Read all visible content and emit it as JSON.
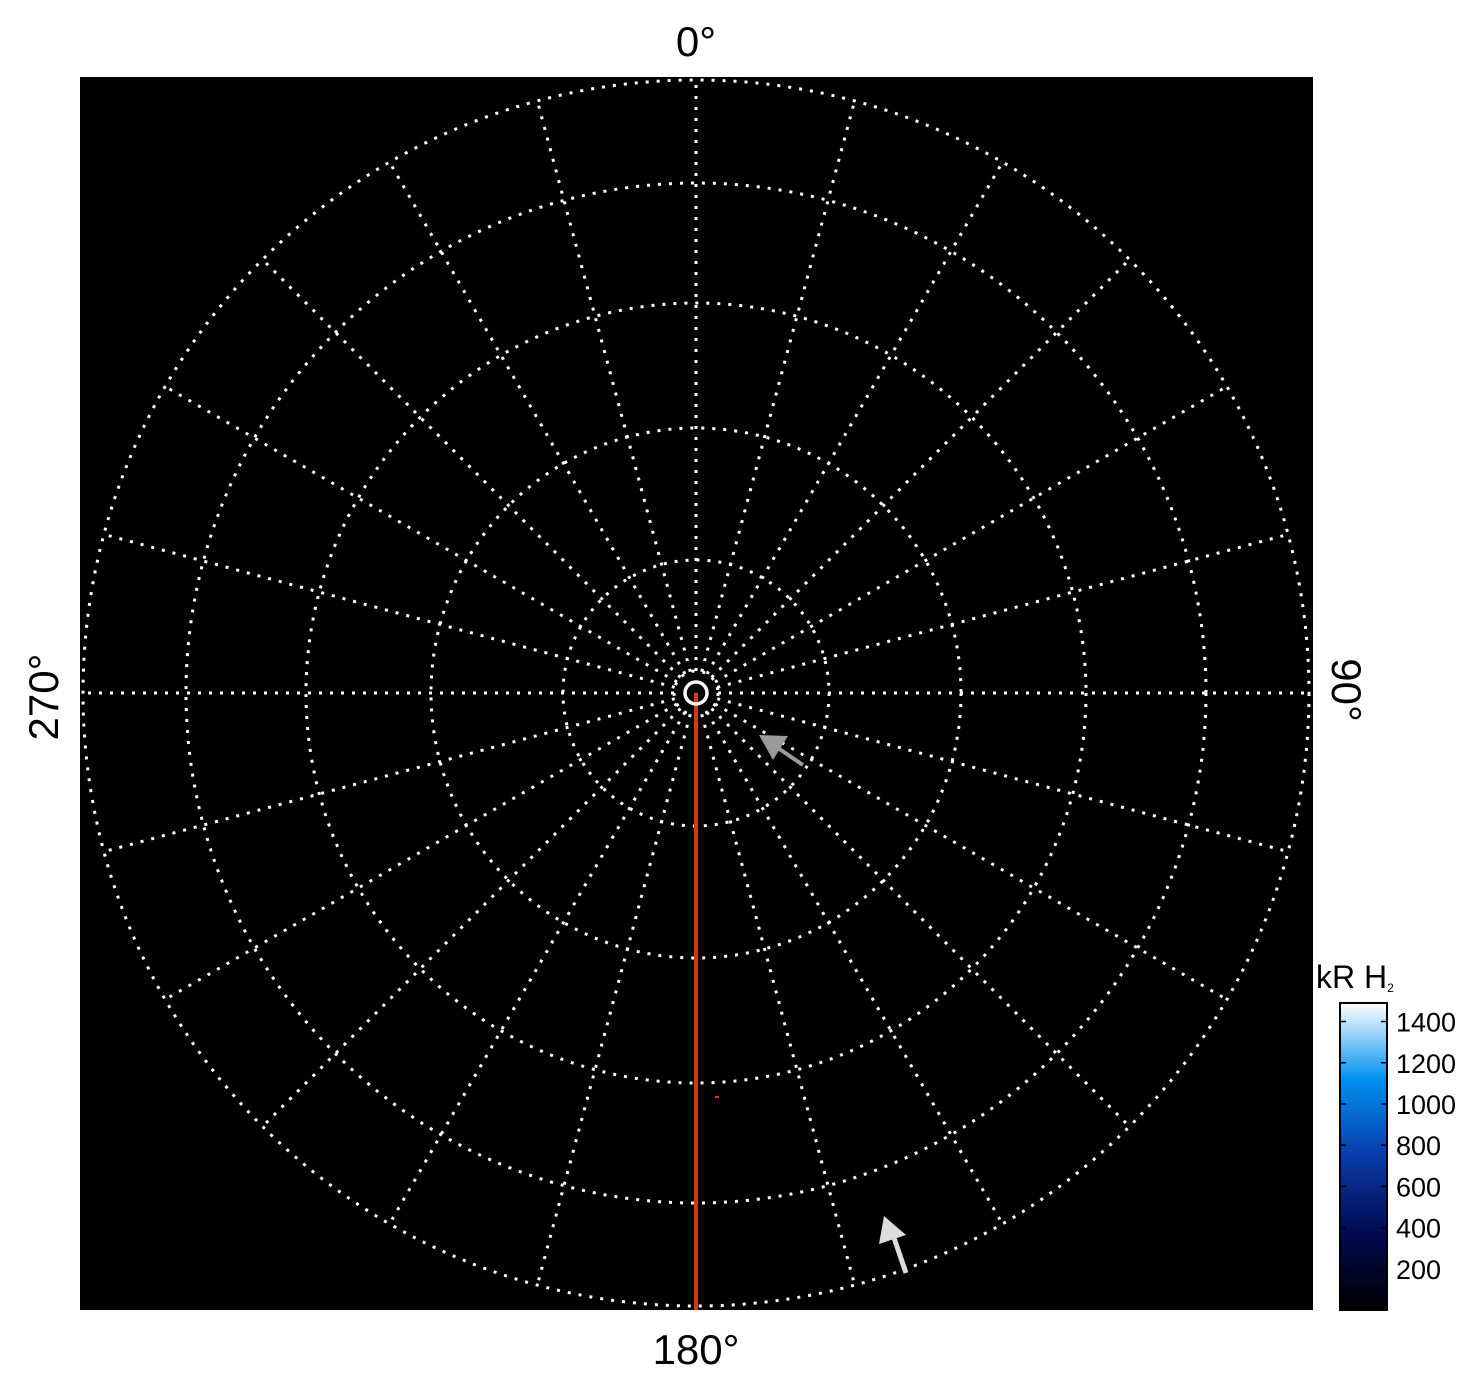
{
  "chart_data": {
    "type": "heatmap",
    "projection": "polar",
    "angular_labels": {
      "top": "0°",
      "right": "90°",
      "bottom": "180°",
      "left": "270°"
    },
    "angular_grid_step_deg": 15,
    "grid": true,
    "grid_style": "dotted white",
    "background": "#000000",
    "marker_line": {
      "angle_deg": 180,
      "color": "#d03a10"
    },
    "arrows": [
      {
        "color": "#9a9a9a",
        "direction": "up-left"
      },
      {
        "color": "#dcdcdc",
        "direction": "up-left"
      }
    ],
    "colorbar": {
      "label": "kR H",
      "label_subscript": "2",
      "ticks": [
        "1400",
        "1200",
        "1000",
        "800",
        "600",
        "400",
        "200"
      ],
      "tick_values": [
        1400,
        1200,
        1000,
        800,
        600,
        400,
        200
      ],
      "range": [
        0,
        1490
      ],
      "colors": [
        "#000000",
        "#000a50",
        "#0a3aa8",
        "#0090f0",
        "#ffffff"
      ]
    }
  }
}
